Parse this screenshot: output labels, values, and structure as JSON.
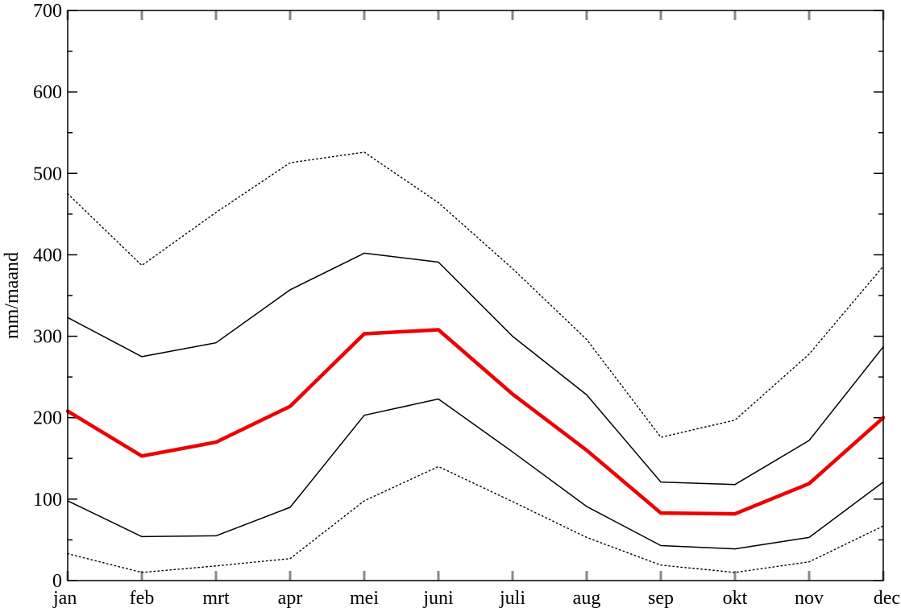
{
  "chart_data": {
    "type": "line",
    "title": "",
    "xlabel": "",
    "ylabel": "mm/maand",
    "ylim": [
      0,
      700
    ],
    "yticks": [
      0,
      100,
      200,
      300,
      400,
      500,
      600,
      700
    ],
    "categories": [
      "jan",
      "feb",
      "mrt",
      "apr",
      "mei",
      "juni",
      "juli",
      "aug",
      "sep",
      "okt",
      "nov",
      "dec"
    ],
    "grid": false,
    "legend": "none",
    "series": [
      {
        "color": "#000000",
        "style": "dotted",
        "width": 1.5,
        "values": [
          475,
          387,
          452,
          513,
          526,
          464,
          383,
          296,
          176,
          197,
          278,
          386
        ]
      },
      {
        "color": "#000000",
        "style": "solid",
        "width": 1.5,
        "values": [
          323,
          275,
          292,
          357,
          402,
          391,
          300,
          228,
          121,
          118,
          172,
          287
        ]
      },
      {
        "color": "#ee0000",
        "style": "solid",
        "width": 4.5,
        "values": [
          208,
          153,
          170,
          214,
          303,
          308,
          229,
          160,
          83,
          82,
          119,
          200
        ]
      },
      {
        "color": "#000000",
        "style": "solid",
        "width": 1.5,
        "values": [
          98,
          54,
          55,
          90,
          203,
          223,
          158,
          91,
          43,
          39,
          53,
          121
        ]
      },
      {
        "color": "#000000",
        "style": "dotted",
        "width": 1.5,
        "values": [
          33,
          10,
          18,
          27,
          98,
          140,
          97,
          53,
          19,
          10,
          23,
          67
        ]
      }
    ]
  }
}
